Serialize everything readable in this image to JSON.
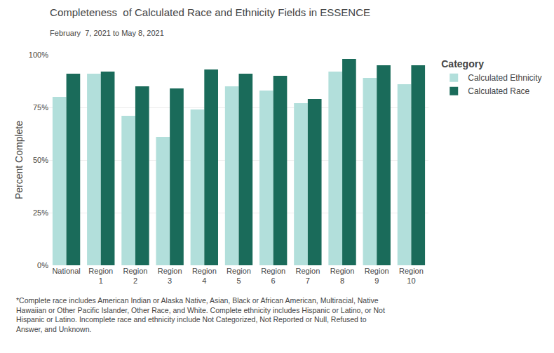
{
  "chart_data": {
    "type": "bar",
    "title": "Completeness  of Calculated Race and Ethnicity Fields in ESSENCE",
    "subtitle": "February  7, 2021 to May 8, 2021",
    "ylabel": "Percent Complete",
    "categories": [
      "National",
      "Region\n1",
      "Region\n2",
      "Region\n3",
      "Region\n4",
      "Region\n5",
      "Region\n6",
      "Region\n7",
      "Region\n8",
      "Region\n9",
      "Region\n10"
    ],
    "series": [
      {
        "name": "Calculated Ethnicity",
        "color": "#b2dfdb",
        "values": [
          80,
          91,
          71,
          61,
          74,
          85,
          83,
          77,
          92,
          89,
          86
        ]
      },
      {
        "name": "Calculated Race",
        "color": "#1a6b5a",
        "values": [
          91,
          92,
          85,
          84,
          93,
          91,
          90,
          79,
          98,
          95,
          95
        ]
      }
    ],
    "legend_title": "Category",
    "legend": "upper right",
    "ylim": [
      0,
      100
    ],
    "yticks": [
      {
        "value": 0,
        "label": "0%"
      },
      {
        "value": 25,
        "label": "25%"
      },
      {
        "value": 50,
        "label": "50%"
      },
      {
        "value": 75,
        "label": "75%"
      },
      {
        "value": 100,
        "label": "100%"
      }
    ],
    "grid": true,
    "footnote": "*Complete race includes American Indian or Alaska Native, Asian, Black or African American, Multiracial, Native\nHawaiian or Other Pacific Islander, Other Race, and White. Complete ethnicity includes Hispanic or Latino, or Not\nHispanic or Latino. Incomplete race and ethnicity include Not Categorized, Not Reported or Null, Refused to\nAnswer, and Unknown."
  }
}
